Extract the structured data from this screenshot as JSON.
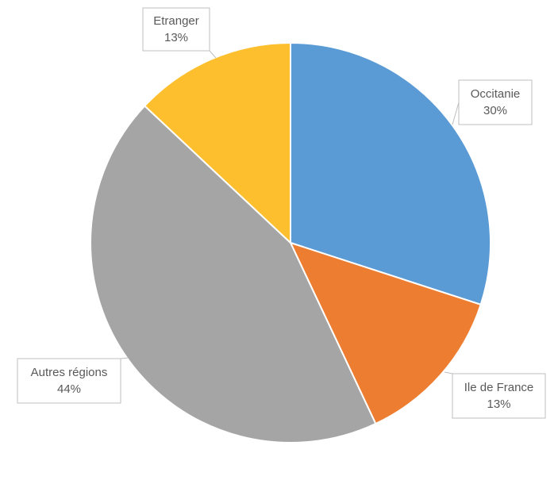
{
  "chart_data": {
    "type": "pie",
    "categories": [
      "Occitanie",
      "Ile de France",
      "Autres régions",
      "Etranger"
    ],
    "values": [
      30,
      13,
      44,
      13
    ],
    "value_labels": [
      "30%",
      "13%",
      "44%",
      "13%"
    ],
    "colors": [
      "#5b9bd5",
      "#ed7d31",
      "#a5a5a5",
      "#fdbf2d"
    ]
  }
}
